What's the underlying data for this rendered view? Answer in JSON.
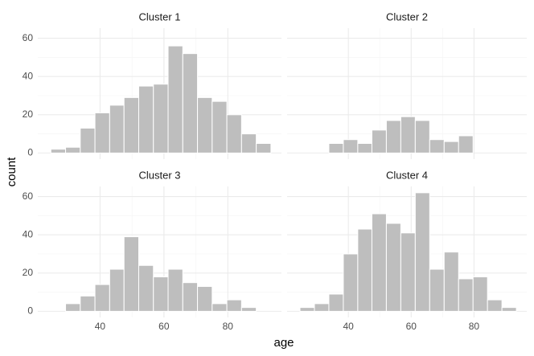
{
  "x_label": "age",
  "y_label": "count",
  "chart_data": [
    {
      "type": "histogram",
      "title": "Cluster 1",
      "color": "#bebebe",
      "grid": true,
      "bins": [
        24.6,
        29.2,
        33.8,
        38.4,
        43.0,
        47.5,
        52.1,
        56.7,
        61.3,
        65.9,
        70.5,
        75.1,
        79.7,
        84.3,
        88.9,
        93.5
      ],
      "values": [
        2,
        3,
        13,
        21,
        25,
        29,
        35,
        36,
        56,
        52,
        29,
        27,
        20,
        10,
        5
      ],
      "xlim": [
        20.5,
        96.8
      ],
      "ylim": [
        -3.2,
        65.3
      ],
      "xticks": [
        40,
        60,
        80
      ],
      "yticks": [
        0,
        20,
        40,
        60
      ]
    },
    {
      "type": "histogram",
      "title": "Cluster 2",
      "color": "#bebebe",
      "grid": true,
      "bins": [
        24.6,
        29.2,
        33.8,
        38.4,
        43.0,
        47.5,
        52.1,
        56.7,
        61.3,
        65.9,
        70.5,
        75.1,
        79.7,
        84.3,
        88.9,
        93.5
      ],
      "values": [
        0,
        0,
        5,
        7,
        5,
        12,
        17,
        19,
        17,
        7,
        6,
        9,
        0,
        0,
        0
      ],
      "xlim": [
        20.5,
        96.8
      ],
      "ylim": [
        -3.2,
        65.3
      ],
      "xticks": [
        40,
        60,
        80
      ],
      "yticks": [
        0,
        20,
        40,
        60
      ]
    },
    {
      "type": "histogram",
      "title": "Cluster 3",
      "color": "#bebebe",
      "grid": true,
      "bins": [
        24.6,
        29.2,
        33.8,
        38.4,
        43.0,
        47.5,
        52.1,
        56.7,
        61.3,
        65.9,
        70.5,
        75.1,
        79.7,
        84.3,
        88.9,
        93.5
      ],
      "values": [
        0,
        4,
        8,
        14,
        22,
        39,
        24,
        18,
        22,
        15,
        13,
        4,
        6,
        2,
        0
      ],
      "xlim": [
        20.5,
        96.8
      ],
      "ylim": [
        -3.2,
        65.3
      ],
      "xticks": [
        40,
        60,
        80
      ],
      "yticks": [
        0,
        20,
        40,
        60
      ]
    },
    {
      "type": "histogram",
      "title": "Cluster 4",
      "color": "#bebebe",
      "grid": true,
      "bins": [
        24.6,
        29.2,
        33.8,
        38.4,
        43.0,
        47.5,
        52.1,
        56.7,
        61.3,
        65.9,
        70.5,
        75.1,
        79.7,
        84.3,
        88.9,
        93.5
      ],
      "values": [
        2,
        4,
        9,
        30,
        43,
        51,
        46,
        41,
        62,
        22,
        31,
        17,
        18,
        6,
        2
      ],
      "xlim": [
        20.5,
        96.8
      ],
      "ylim": [
        -3.2,
        65.3
      ],
      "xticks": [
        40,
        60,
        80
      ],
      "yticks": [
        0,
        20,
        40,
        60
      ]
    }
  ]
}
